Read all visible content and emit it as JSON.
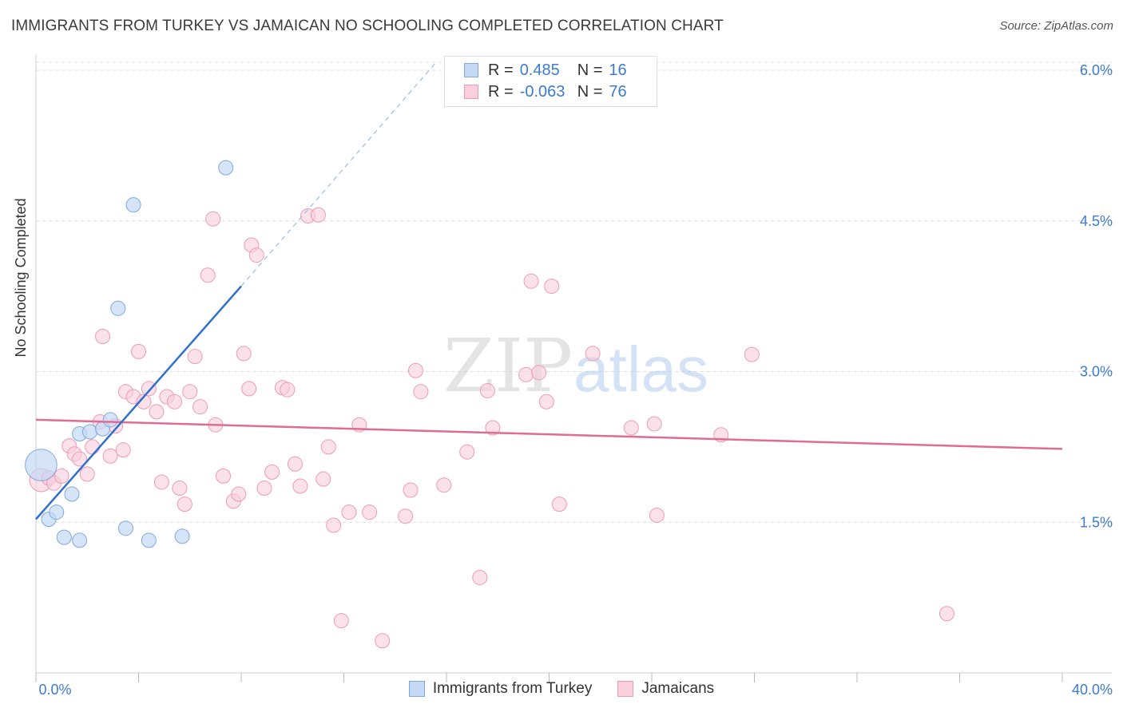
{
  "header": {
    "title": "IMMIGRANTS FROM TURKEY VS JAMAICAN NO SCHOOLING COMPLETED CORRELATION CHART",
    "source": "Source: ZipAtlas.com"
  },
  "legend": {
    "series": [
      {
        "r_label": "R =",
        "r_value": "0.485",
        "n_label": "N =",
        "n_value": "16"
      },
      {
        "r_label": "R =",
        "r_value": "-0.063",
        "n_label": "N =",
        "n_value": "76"
      }
    ]
  },
  "bottom_legend": {
    "turkey": "Immigrants from Turkey",
    "jamaicans": "Jamaicans"
  },
  "colors": {
    "turkey_fill": "#c5d9f4",
    "turkey_stroke": "#7fa8e0",
    "turkey_line": "#2e6fd1",
    "jamaican_fill": "#f9cfdc",
    "jamaican_stroke": "#ee9ab4",
    "jamaican_line": "#e06b93",
    "axis_text": "#3d7bd0"
  },
  "watermark": {
    "zip": "ZIP",
    "atlas": "atlas"
  },
  "chart_data": {
    "type": "scatter",
    "title": "IMMIGRANTS FROM TURKEY VS JAMAICAN NO SCHOOLING COMPLETED CORRELATION CHART",
    "xlabel": "",
    "ylabel": "No Schooling Completed",
    "xlim": [
      0,
      40
    ],
    "ylim": [
      0,
      6.0
    ],
    "x_tick_labels": [
      "0.0%",
      "40.0%"
    ],
    "y_ticks": [
      1.5,
      3.0,
      4.5,
      6.0
    ],
    "y_tick_labels": [
      "1.5%",
      "3.0%",
      "4.5%",
      "6.0%"
    ],
    "grid": true,
    "series": [
      {
        "name": "Immigrants from Turkey",
        "r": 0.485,
        "n": 16,
        "trend": {
          "x": [
            0,
            8.0
          ],
          "y": [
            1.53,
            3.85
          ],
          "dashed_to": [
            15.6,
            6.08
          ]
        },
        "points": [
          [
            0.2,
            2.07,
            2.2
          ],
          [
            0.5,
            1.53,
            1
          ],
          [
            0.8,
            1.6,
            1
          ],
          [
            1.1,
            1.35,
            1
          ],
          [
            1.4,
            1.78,
            1
          ],
          [
            1.7,
            1.32,
            1
          ],
          [
            1.7,
            2.38,
            1
          ],
          [
            2.1,
            2.4,
            1
          ],
          [
            2.6,
            2.43,
            1
          ],
          [
            2.9,
            2.52,
            1
          ],
          [
            3.2,
            3.63,
            1
          ],
          [
            3.5,
            1.44,
            1
          ],
          [
            3.8,
            4.66,
            1
          ],
          [
            4.4,
            1.32,
            1
          ],
          [
            5.7,
            1.36,
            1
          ],
          [
            7.4,
            5.03,
            1
          ]
        ]
      },
      {
        "name": "Jamaicans",
        "r": -0.063,
        "n": 76,
        "trend": {
          "x": [
            0,
            40
          ],
          "y": [
            2.52,
            2.23
          ]
        },
        "points": [
          [
            0.2,
            1.92,
            1.6
          ],
          [
            0.5,
            1.94,
            1
          ],
          [
            0.7,
            1.89,
            1
          ],
          [
            1.0,
            1.96,
            1
          ],
          [
            1.3,
            2.26,
            1
          ],
          [
            1.5,
            2.18,
            1
          ],
          [
            1.7,
            2.13,
            1
          ],
          [
            2.0,
            1.98,
            1
          ],
          [
            2.2,
            2.25,
            1
          ],
          [
            2.5,
            2.5,
            1
          ],
          [
            2.6,
            3.35,
            1
          ],
          [
            2.9,
            2.16,
            1
          ],
          [
            3.1,
            2.46,
            1
          ],
          [
            3.4,
            2.22,
            1
          ],
          [
            3.5,
            2.8,
            1
          ],
          [
            3.8,
            2.75,
            1
          ],
          [
            4.0,
            3.2,
            1
          ],
          [
            4.2,
            2.7,
            1
          ],
          [
            4.4,
            2.83,
            1
          ],
          [
            4.7,
            2.6,
            1
          ],
          [
            4.9,
            1.9,
            1
          ],
          [
            5.1,
            2.75,
            1
          ],
          [
            5.4,
            2.7,
            1
          ],
          [
            5.6,
            1.84,
            1
          ],
          [
            5.8,
            1.68,
            1
          ],
          [
            6.0,
            2.8,
            1
          ],
          [
            6.2,
            3.15,
            1
          ],
          [
            6.4,
            2.65,
            1
          ],
          [
            6.7,
            3.96,
            1
          ],
          [
            6.9,
            4.52,
            1
          ],
          [
            7.3,
            1.96,
            1
          ],
          [
            7.7,
            1.71,
            1
          ],
          [
            7.9,
            1.78,
            1
          ],
          [
            8.1,
            3.18,
            1
          ],
          [
            8.3,
            2.83,
            1
          ],
          [
            8.4,
            4.26,
            1
          ],
          [
            8.6,
            4.16,
            1
          ],
          [
            8.9,
            1.84,
            1
          ],
          [
            9.2,
            2.0,
            1
          ],
          [
            9.6,
            2.84,
            1
          ],
          [
            9.8,
            2.82,
            1
          ],
          [
            10.1,
            2.08,
            1
          ],
          [
            10.3,
            1.86,
            1
          ],
          [
            10.6,
            4.55,
            1
          ],
          [
            11.0,
            4.56,
            1
          ],
          [
            11.2,
            1.93,
            1
          ],
          [
            11.4,
            2.25,
            1
          ],
          [
            11.6,
            1.47,
            1
          ],
          [
            11.9,
            0.52,
            1
          ],
          [
            12.2,
            1.6,
            1
          ],
          [
            12.6,
            2.47,
            1
          ],
          [
            13.0,
            1.6,
            1
          ],
          [
            13.5,
            0.32,
            1
          ],
          [
            14.4,
            1.56,
            1
          ],
          [
            14.6,
            1.82,
            1
          ],
          [
            14.8,
            3.01,
            1
          ],
          [
            15.0,
            2.8,
            1
          ],
          [
            15.9,
            1.87,
            1
          ],
          [
            16.8,
            2.2,
            1
          ],
          [
            17.3,
            0.95,
            1
          ],
          [
            17.6,
            2.81,
            1
          ],
          [
            17.8,
            2.44,
            1
          ],
          [
            19.1,
            2.97,
            1
          ],
          [
            19.3,
            3.9,
            1
          ],
          [
            19.6,
            2.99,
            1
          ],
          [
            19.9,
            2.7,
            1
          ],
          [
            20.1,
            3.85,
            1
          ],
          [
            20.4,
            1.68,
            1
          ],
          [
            21.7,
            3.18,
            1
          ],
          [
            23.2,
            2.44,
            1
          ],
          [
            24.1,
            2.48,
            1
          ],
          [
            24.2,
            1.57,
            1
          ],
          [
            26.7,
            2.37,
            1
          ],
          [
            27.9,
            3.17,
            1
          ],
          [
            35.5,
            0.59,
            1
          ],
          [
            7.0,
            2.47,
            1
          ]
        ]
      }
    ]
  }
}
